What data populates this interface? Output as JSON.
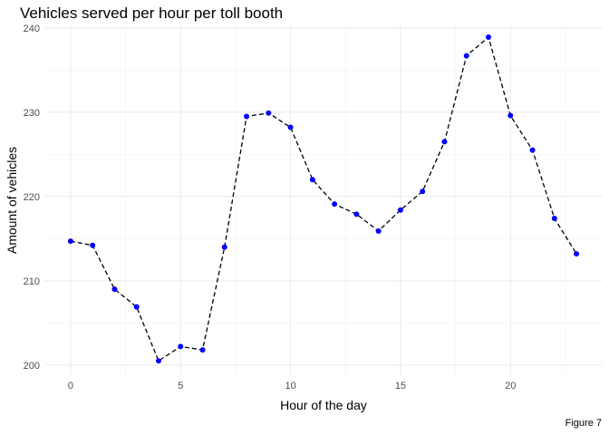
{
  "chart_data": {
    "type": "line",
    "title": "Vehicles served per hour per toll booth",
    "xlabel": "Hour of the day",
    "ylabel": "Amount of vehicles",
    "caption": "Figure 7",
    "x": [
      0,
      1,
      2,
      3,
      4,
      5,
      6,
      7,
      8,
      9,
      10,
      11,
      12,
      13,
      14,
      15,
      16,
      17,
      18,
      19,
      20,
      21,
      22,
      23
    ],
    "values": [
      214.7,
      214.2,
      209.0,
      206.9,
      200.5,
      202.2,
      201.8,
      214.0,
      229.5,
      229.9,
      228.2,
      222.0,
      219.1,
      217.9,
      215.9,
      218.4,
      220.6,
      226.5,
      236.7,
      238.9,
      229.6,
      225.5,
      217.4,
      213.2
    ],
    "xlim": [
      -1.15,
      24.15
    ],
    "ylim": [
      198.8,
      240.3
    ],
    "x_ticks": [
      0,
      5,
      10,
      15,
      20
    ],
    "x_tick_labels": [
      "0",
      "5",
      "10",
      "15",
      "20"
    ],
    "y_ticks": [
      200,
      210,
      220,
      230,
      240
    ],
    "y_tick_labels": [
      "200",
      "210",
      "220",
      "230",
      "240"
    ],
    "grid": true,
    "line_style": "dashed",
    "line_color": "#000000",
    "point_color": "#0000ff"
  }
}
